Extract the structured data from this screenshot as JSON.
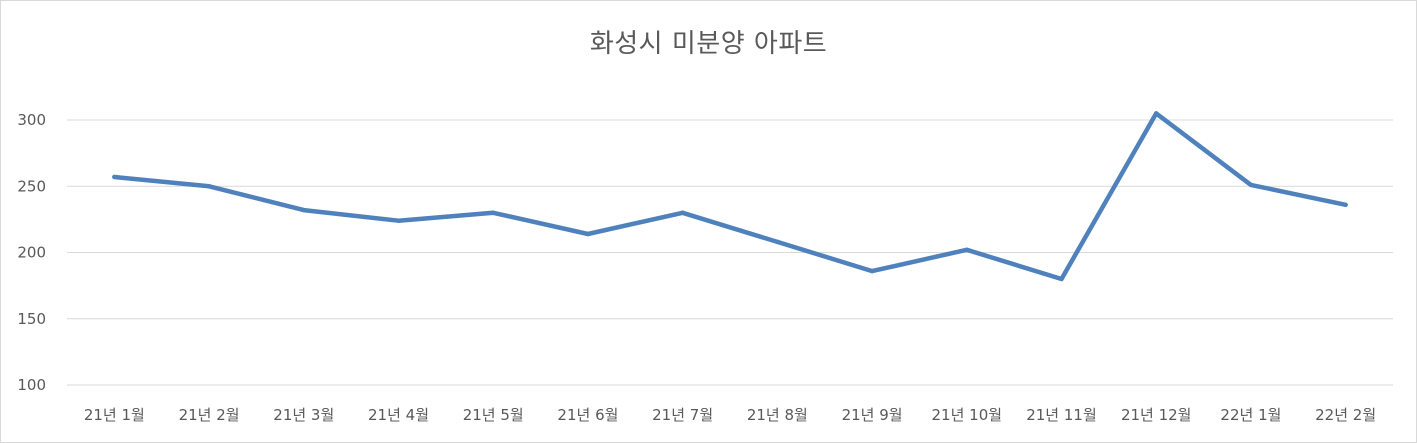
{
  "chart_data": {
    "type": "line",
    "title": "화성시 미분양 아파트",
    "categories": [
      "21년 1월",
      "21년 2월",
      "21년 3월",
      "21년 4월",
      "21년 5월",
      "21년 6월",
      "21년 7월",
      "21년 8월",
      "21년 9월",
      "21년 10월",
      "21년 11월",
      "21년 12월",
      "22년 1월",
      "22년 2월"
    ],
    "series": [
      {
        "values": [
          257,
          250,
          232,
          224,
          230,
          214,
          230,
          208,
          186,
          202,
          180,
          305,
          251,
          236
        ],
        "color": "#4f81bd"
      }
    ],
    "yticks": [
      "100",
      "150",
      "200",
      "250",
      "300"
    ],
    "ylim": [
      100,
      300
    ],
    "grid": true,
    "legend": "none"
  }
}
